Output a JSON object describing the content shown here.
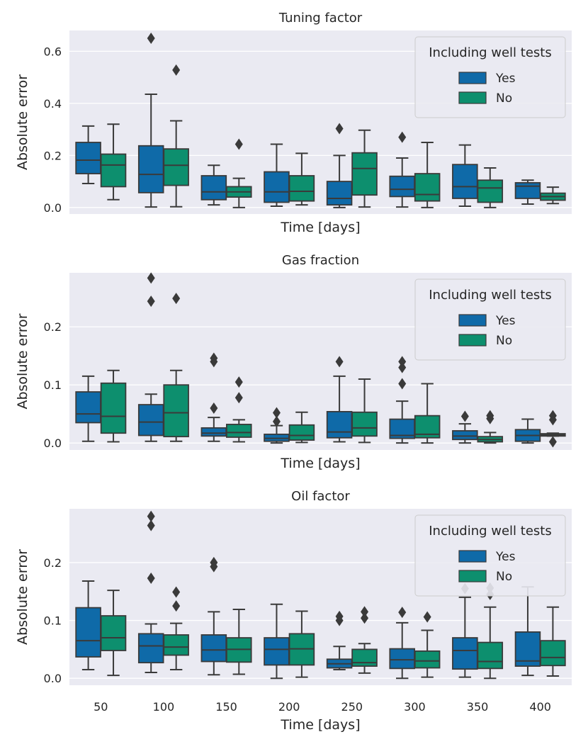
{
  "chart_data": [
    {
      "type": "boxplot",
      "title": "Tuning factor",
      "xlabel": "Time [days]",
      "ylabel": "Absolute error",
      "ylim": [
        -0.025,
        0.68
      ],
      "yticks": [
        0.0,
        0.2,
        0.4,
        0.6
      ],
      "ytick_labels": [
        "0.0",
        "0.2",
        "0.4",
        "0.6"
      ],
      "categories": [
        "50",
        "100",
        "150",
        "200",
        "250",
        "300",
        "350",
        "400"
      ],
      "legend": {
        "title": "Including well tests",
        "location": "top-right"
      },
      "series": [
        {
          "name": "Yes",
          "color": "#0f6aa8",
          "boxes": [
            {
              "min": 0.092,
              "q1": 0.13,
              "median": 0.182,
              "q3": 0.25,
              "max": 0.313,
              "outliers": []
            },
            {
              "min": 0.002,
              "q1": 0.057,
              "median": 0.127,
              "q3": 0.237,
              "max": 0.435,
              "outliers": [
                0.65
              ]
            },
            {
              "min": 0.01,
              "q1": 0.03,
              "median": 0.06,
              "q3": 0.122,
              "max": 0.162,
              "outliers": []
            },
            {
              "min": 0.005,
              "q1": 0.02,
              "median": 0.06,
              "q3": 0.137,
              "max": 0.243,
              "outliers": []
            },
            {
              "min": 0.0,
              "q1": 0.01,
              "median": 0.035,
              "q3": 0.1,
              "max": 0.2,
              "outliers": [
                0.303
              ]
            },
            {
              "min": 0.002,
              "q1": 0.042,
              "median": 0.07,
              "q3": 0.12,
              "max": 0.19,
              "outliers": [
                0.27
              ]
            },
            {
              "min": 0.005,
              "q1": 0.035,
              "median": 0.08,
              "q3": 0.165,
              "max": 0.24,
              "outliers": []
            },
            {
              "min": 0.013,
              "q1": 0.035,
              "median": 0.082,
              "q3": 0.095,
              "max": 0.105,
              "outliers": []
            }
          ]
        },
        {
          "name": "No",
          "color": "#0d8f6e",
          "boxes": [
            {
              "min": 0.03,
              "q1": 0.08,
              "median": 0.163,
              "q3": 0.205,
              "max": 0.32,
              "outliers": []
            },
            {
              "min": 0.003,
              "q1": 0.085,
              "median": 0.162,
              "q3": 0.225,
              "max": 0.333,
              "outliers": [
                0.528
              ]
            },
            {
              "min": 0.0,
              "q1": 0.04,
              "median": 0.06,
              "q3": 0.08,
              "max": 0.112,
              "outliers": [
                0.243
              ]
            },
            {
              "min": 0.01,
              "q1": 0.025,
              "median": 0.062,
              "q3": 0.122,
              "max": 0.208,
              "outliers": []
            },
            {
              "min": 0.002,
              "q1": 0.048,
              "median": 0.15,
              "q3": 0.21,
              "max": 0.297,
              "outliers": []
            },
            {
              "min": 0.0,
              "q1": 0.025,
              "median": 0.05,
              "q3": 0.13,
              "max": 0.25,
              "outliers": []
            },
            {
              "min": 0.0,
              "q1": 0.02,
              "median": 0.075,
              "q3": 0.105,
              "max": 0.152,
              "outliers": []
            },
            {
              "min": 0.015,
              "q1": 0.028,
              "median": 0.042,
              "q3": 0.055,
              "max": 0.078,
              "outliers": []
            }
          ]
        }
      ]
    },
    {
      "type": "boxplot",
      "title": "Gas fraction",
      "xlabel": "Time [days]",
      "ylabel": "Absolute error",
      "ylim": [
        -0.012,
        0.293
      ],
      "yticks": [
        0.0,
        0.1,
        0.2
      ],
      "ytick_labels": [
        "0.0",
        "0.1",
        "0.2"
      ],
      "categories": [
        "50",
        "100",
        "150",
        "200",
        "250",
        "300",
        "350",
        "400"
      ],
      "legend": {
        "title": "Including well tests",
        "location": "top-right"
      },
      "series": [
        {
          "name": "Yes",
          "color": "#0f6aa8",
          "boxes": [
            {
              "min": 0.003,
              "q1": 0.035,
              "median": 0.05,
              "q3": 0.088,
              "max": 0.115,
              "outliers": []
            },
            {
              "min": 0.003,
              "q1": 0.013,
              "median": 0.036,
              "q3": 0.066,
              "max": 0.084,
              "outliers": [
                0.284,
                0.244
              ]
            },
            {
              "min": 0.003,
              "q1": 0.012,
              "median": 0.017,
              "q3": 0.026,
              "max": 0.044,
              "outliers": [
                0.146,
                0.14,
                0.06
              ]
            },
            {
              "min": 0.0,
              "q1": 0.003,
              "median": 0.008,
              "q3": 0.015,
              "max": 0.03,
              "outliers": [
                0.052,
                0.037
              ]
            },
            {
              "min": 0.002,
              "q1": 0.009,
              "median": 0.019,
              "q3": 0.054,
              "max": 0.115,
              "outliers": [
                0.14
              ]
            },
            {
              "min": 0.0,
              "q1": 0.008,
              "median": 0.013,
              "q3": 0.041,
              "max": 0.072,
              "outliers": [
                0.14,
                0.13,
                0.102
              ]
            },
            {
              "min": 0.0,
              "q1": 0.006,
              "median": 0.012,
              "q3": 0.021,
              "max": 0.033,
              "outliers": [
                0.046
              ]
            },
            {
              "min": 0.0,
              "q1": 0.003,
              "median": 0.013,
              "q3": 0.023,
              "max": 0.041,
              "outliers": []
            }
          ]
        },
        {
          "name": "No",
          "color": "#0d8f6e",
          "boxes": [
            {
              "min": 0.002,
              "q1": 0.017,
              "median": 0.046,
              "q3": 0.103,
              "max": 0.125,
              "outliers": []
            },
            {
              "min": 0.003,
              "q1": 0.011,
              "median": 0.052,
              "q3": 0.1,
              "max": 0.125,
              "outliers": [
                0.249
              ]
            },
            {
              "min": 0.002,
              "q1": 0.01,
              "median": 0.018,
              "q3": 0.032,
              "max": 0.04,
              "outliers": [
                0.105,
                0.078
              ]
            },
            {
              "min": 0.001,
              "q1": 0.005,
              "median": 0.013,
              "q3": 0.031,
              "max": 0.053,
              "outliers": []
            },
            {
              "min": 0.001,
              "q1": 0.012,
              "median": 0.026,
              "q3": 0.053,
              "max": 0.11,
              "outliers": []
            },
            {
              "min": 0.0,
              "q1": 0.009,
              "median": 0.015,
              "q3": 0.047,
              "max": 0.102,
              "outliers": []
            },
            {
              "min": 0.0,
              "q1": 0.002,
              "median": 0.006,
              "q3": 0.011,
              "max": 0.018,
              "outliers": [
                0.047,
                0.042
              ]
            },
            {
              "min": 0.012,
              "q1": 0.012,
              "median": 0.014,
              "q3": 0.016,
              "max": 0.017,
              "outliers": [
                0.047,
                0.04,
                0.002
              ]
            }
          ]
        }
      ]
    },
    {
      "type": "boxplot",
      "title": "Oil factor",
      "xlabel": "Time [days]",
      "ylabel": "Absolute error",
      "ylim": [
        -0.012,
        0.293
      ],
      "yticks": [
        0.0,
        0.1,
        0.2
      ],
      "ytick_labels": [
        "0.0",
        "0.1",
        "0.2"
      ],
      "categories": [
        "50",
        "100",
        "150",
        "200",
        "250",
        "300",
        "350",
        "400"
      ],
      "legend": {
        "title": "Including well tests",
        "location": "top-right"
      },
      "series": [
        {
          "name": "Yes",
          "color": "#0f6aa8",
          "boxes": [
            {
              "min": 0.015,
              "q1": 0.037,
              "median": 0.065,
              "q3": 0.122,
              "max": 0.168,
              "outliers": []
            },
            {
              "min": 0.01,
              "q1": 0.027,
              "median": 0.056,
              "q3": 0.077,
              "max": 0.094,
              "outliers": [
                0.28,
                0.264,
                0.173
              ]
            },
            {
              "min": 0.006,
              "q1": 0.029,
              "median": 0.049,
              "q3": 0.075,
              "max": 0.115,
              "outliers": [
                0.2,
                0.193
              ]
            },
            {
              "min": 0.0,
              "q1": 0.023,
              "median": 0.05,
              "q3": 0.07,
              "max": 0.128,
              "outliers": []
            },
            {
              "min": 0.015,
              "q1": 0.018,
              "median": 0.025,
              "q3": 0.033,
              "max": 0.055,
              "outliers": [
                0.107,
                0.1
              ]
            },
            {
              "min": 0.0,
              "q1": 0.017,
              "median": 0.032,
              "q3": 0.051,
              "max": 0.096,
              "outliers": [
                0.114
              ]
            },
            {
              "min": 0.002,
              "q1": 0.016,
              "median": 0.048,
              "q3": 0.07,
              "max": 0.14,
              "outliers": [
                0.155
              ]
            },
            {
              "min": 0.005,
              "q1": 0.021,
              "median": 0.03,
              "q3": 0.08,
              "max": 0.158,
              "outliers": []
            }
          ]
        },
        {
          "name": "No",
          "color": "#0d8f6e",
          "boxes": [
            {
              "min": 0.005,
              "q1": 0.048,
              "median": 0.07,
              "q3": 0.108,
              "max": 0.152,
              "outliers": []
            },
            {
              "min": 0.015,
              "q1": 0.04,
              "median": 0.054,
              "q3": 0.075,
              "max": 0.095,
              "outliers": [
                0.149,
                0.125
              ]
            },
            {
              "min": 0.007,
              "q1": 0.028,
              "median": 0.05,
              "q3": 0.07,
              "max": 0.119,
              "outliers": []
            },
            {
              "min": 0.002,
              "q1": 0.023,
              "median": 0.051,
              "q3": 0.077,
              "max": 0.116,
              "outliers": []
            },
            {
              "min": 0.009,
              "q1": 0.021,
              "median": 0.027,
              "q3": 0.05,
              "max": 0.06,
              "outliers": [
                0.115,
                0.104
              ]
            },
            {
              "min": 0.002,
              "q1": 0.018,
              "median": 0.03,
              "q3": 0.047,
              "max": 0.083,
              "outliers": [
                0.106
              ]
            },
            {
              "min": 0.0,
              "q1": 0.017,
              "median": 0.029,
              "q3": 0.062,
              "max": 0.123,
              "outliers": [
                0.156,
                0.145
              ]
            },
            {
              "min": 0.004,
              "q1": 0.022,
              "median": 0.036,
              "q3": 0.065,
              "max": 0.123,
              "outliers": []
            }
          ]
        }
      ]
    }
  ]
}
